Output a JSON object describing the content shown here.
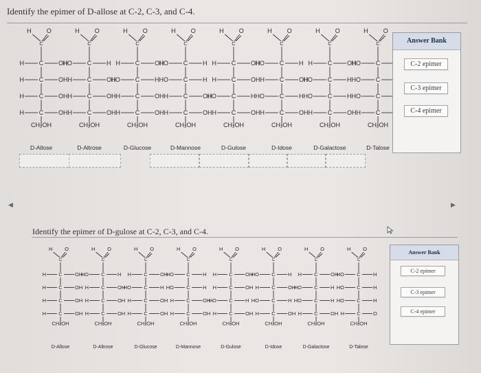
{
  "q1": {
    "title": "Identify the epimer of D-allose at C-2, C-3, and C-4."
  },
  "q2": {
    "title": "Identify the epimer of D-gulose at C-2, C-3, and C-4."
  },
  "sugars": [
    {
      "name": "D-Allose",
      "rows": [
        [
          "H",
          "OH"
        ],
        [
          "H",
          "OH"
        ],
        [
          "H",
          "OH"
        ],
        [
          "H",
          "OH"
        ]
      ]
    },
    {
      "name": "D-Altrose",
      "rows": [
        [
          "HO",
          "H"
        ],
        [
          "H",
          "OH"
        ],
        [
          "H",
          "OH"
        ],
        [
          "H",
          "OH"
        ]
      ]
    },
    {
      "name": "D-Glucose",
      "rows": [
        [
          "H",
          "OH"
        ],
        [
          "HO",
          "H"
        ],
        [
          "H",
          "OH"
        ],
        [
          "H",
          "OH"
        ]
      ]
    },
    {
      "name": "D-Mannose",
      "rows": [
        [
          "HO",
          "H"
        ],
        [
          "HO",
          "H"
        ],
        [
          "H",
          "OH"
        ],
        [
          "H",
          "OH"
        ]
      ]
    },
    {
      "name": "D-Gulose",
      "rows": [
        [
          "H",
          "OH"
        ],
        [
          "H",
          "OH"
        ],
        [
          "HO",
          "H"
        ],
        [
          "H",
          "OH"
        ]
      ]
    },
    {
      "name": "D-Idose",
      "rows": [
        [
          "HO",
          "H"
        ],
        [
          "H",
          "OH"
        ],
        [
          "HO",
          "H"
        ],
        [
          "H",
          "OH"
        ]
      ]
    },
    {
      "name": "D-Galactose",
      "rows": [
        [
          "H",
          "OH"
        ],
        [
          "HO",
          "H"
        ],
        [
          "HO",
          "H"
        ],
        [
          "H",
          "OH"
        ]
      ]
    },
    {
      "name": "D-Talose",
      "rows": [
        [
          "HO",
          "H"
        ],
        [
          "HO",
          "H"
        ],
        [
          "HO",
          "H"
        ],
        [
          "H",
          "O"
        ]
      ]
    }
  ],
  "chem": {
    "h": "H",
    "o": "O",
    "c": "C",
    "ch2oh": "CH₂OH"
  },
  "answer_bank": {
    "header": "Answer Bank",
    "items": [
      "C-2 epimer",
      "C-3 epimer",
      "C-4 epimer"
    ]
  }
}
